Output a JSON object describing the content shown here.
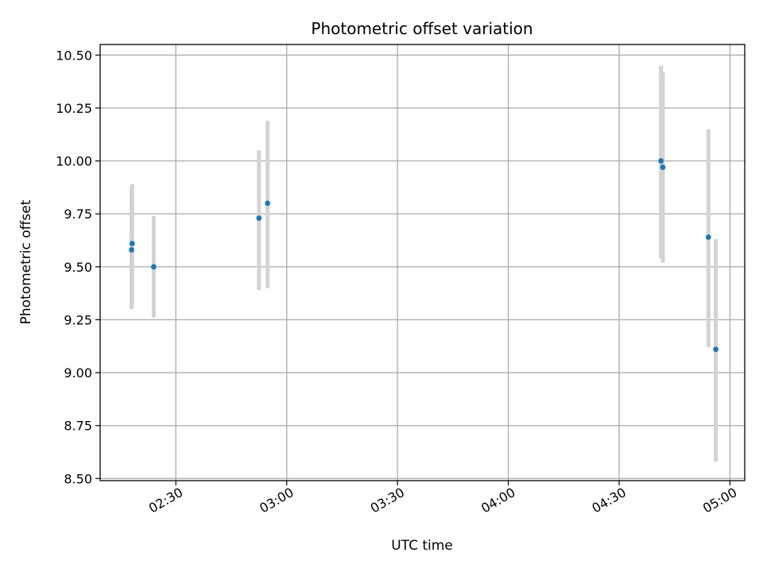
{
  "chart_data": {
    "type": "scatter",
    "title": "Photometric offset variation",
    "xlabel": "UTC time",
    "ylabel": "Photometric offset",
    "x_axis_type": "time",
    "xlim": [
      "02:09:30",
      "05:04:00"
    ],
    "ylim": [
      8.49,
      10.55
    ],
    "x_ticks": [
      "02:30",
      "03:00",
      "03:30",
      "04:00",
      "04:30",
      "05:00"
    ],
    "y_ticks": [
      8.5,
      8.75,
      9.0,
      9.25,
      9.5,
      9.75,
      10.0,
      10.25,
      10.5
    ],
    "y_tick_labels": [
      "8.50",
      "8.75",
      "9.00",
      "9.25",
      "9.50",
      "9.75",
      "10.00",
      "10.25",
      "10.50"
    ],
    "grid": true,
    "marker_color": "#1f77b4",
    "errorbar_color": "#d3d3d3",
    "points": [
      {
        "x": "02:18:00",
        "y": 9.58,
        "yerr_low": 9.3,
        "yerr_high": 9.87
      },
      {
        "x": "02:18:10",
        "y": 9.61,
        "yerr_low": 9.32,
        "yerr_high": 9.89
      },
      {
        "x": "02:24:00",
        "y": 9.5,
        "yerr_low": 9.26,
        "yerr_high": 9.74
      },
      {
        "x": "02:52:30",
        "y": 9.73,
        "yerr_low": 9.39,
        "yerr_high": 10.05
      },
      {
        "x": "02:54:50",
        "y": 9.8,
        "yerr_low": 9.4,
        "yerr_high": 10.19
      },
      {
        "x": "04:41:20",
        "y": 10.0,
        "yerr_low": 9.54,
        "yerr_high": 10.45
      },
      {
        "x": "04:41:50",
        "y": 9.97,
        "yerr_low": 9.52,
        "yerr_high": 10.42
      },
      {
        "x": "04:54:10",
        "y": 9.64,
        "yerr_low": 9.12,
        "yerr_high": 10.15
      },
      {
        "x": "04:56:10",
        "y": 9.11,
        "yerr_low": 8.58,
        "yerr_high": 9.63
      }
    ]
  }
}
